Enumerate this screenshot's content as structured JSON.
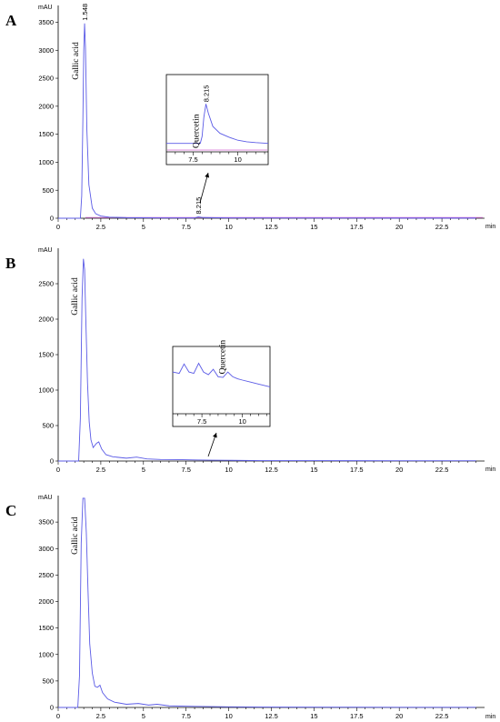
{
  "chart_data": [
    {
      "type": "line",
      "panel_label": "A",
      "y_unit": "mAU",
      "x_unit": "min",
      "xlim": [
        0,
        25
      ],
      "ylim": [
        0,
        3800
      ],
      "x_ticks": [
        0,
        2.5,
        5,
        7.5,
        10,
        12.5,
        15,
        17.5,
        20,
        22.5
      ],
      "x_tick_labels": [
        "0",
        "2.5",
        "5",
        "7.5",
        "10",
        "12.5",
        "15",
        "17.5",
        "20",
        "22.5"
      ],
      "y_ticks": [
        0,
        500,
        1000,
        1500,
        2000,
        2500,
        3000,
        3500
      ],
      "y_tick_labels": [
        "0",
        "500",
        "1000",
        "1500",
        "2000",
        "2500",
        "3000",
        "3500"
      ],
      "trace": {
        "x": [
          0,
          1.3,
          1.38,
          1.45,
          1.5,
          1.548,
          1.6,
          1.68,
          1.8,
          2.0,
          2.2,
          2.5,
          3.0,
          4.0,
          6.0,
          8.0,
          8.215,
          8.5,
          10,
          15,
          20,
          24.5
        ],
        "y": [
          0,
          0,
          400,
          1800,
          3000,
          3480,
          3050,
          1600,
          600,
          180,
          80,
          40,
          20,
          10,
          5,
          5,
          25,
          12,
          5,
          3,
          2,
          2
        ]
      },
      "peaks": [
        {
          "name": "Gallic acid",
          "rt": 1.548,
          "rt_label": "1.548"
        },
        {
          "name": "",
          "rt": 8.215,
          "rt_label": "8.215"
        }
      ],
      "inset": {
        "xlim": [
          6.0,
          11.7
        ],
        "x_ticks": [
          6.5,
          7,
          7.5,
          8,
          8.5,
          9,
          9.5,
          10,
          10.5,
          11,
          11.5
        ],
        "x_tick_labels": [
          "7.5",
          "10"
        ],
        "x_labeled_ticks": [
          7.5,
          10
        ],
        "ylim": [
          0,
          1
        ],
        "trace": {
          "x": [
            6.0,
            7.9,
            8.0,
            8.1,
            8.215,
            8.35,
            8.6,
            9.0,
            9.5,
            10.0,
            10.5,
            11.0,
            11.7
          ],
          "y": [
            0.11,
            0.11,
            0.2,
            0.45,
            0.62,
            0.5,
            0.33,
            0.24,
            0.19,
            0.15,
            0.13,
            0.12,
            0.11
          ]
        },
        "peak": {
          "name": "Quercetin",
          "rt": 8.215,
          "rt_label": "8.215"
        }
      }
    },
    {
      "type": "line",
      "panel_label": "B",
      "y_unit": "mAU",
      "x_unit": "min",
      "xlim": [
        0,
        25
      ],
      "ylim": [
        0,
        3000
      ],
      "x_ticks": [
        0,
        2.5,
        5,
        7.5,
        10,
        12.5,
        15,
        17.5,
        20,
        22.5
      ],
      "x_tick_labels": [
        "0",
        "2.5",
        "5",
        "7.5",
        "10",
        "12.5",
        "15",
        "17.5",
        "20",
        "22.5"
      ],
      "y_ticks": [
        0,
        500,
        1000,
        1500,
        2000,
        2500
      ],
      "y_tick_labels": [
        "0",
        "500",
        "1000",
        "1500",
        "2000",
        "2500"
      ],
      "trace": {
        "x": [
          0,
          1.2,
          1.3,
          1.4,
          1.48,
          1.55,
          1.62,
          1.72,
          1.82,
          1.92,
          2.05,
          2.25,
          2.38,
          2.55,
          2.8,
          3.2,
          4.0,
          4.6,
          5.2,
          6.0,
          7.0,
          8.0,
          9.0,
          10.0,
          12.0,
          16.0,
          20.0,
          24.5
        ],
        "y": [
          0,
          0,
          600,
          2300,
          2850,
          2700,
          2000,
          1100,
          550,
          300,
          190,
          250,
          270,
          170,
          90,
          60,
          40,
          55,
          30,
          22,
          20,
          15,
          12,
          10,
          6,
          5,
          4,
          4
        ]
      },
      "peaks": [
        {
          "name": "Gallic acid",
          "rt": 1.5,
          "rt_label": ""
        }
      ],
      "inset": {
        "xlim": [
          5.7,
          11.7
        ],
        "x_ticks": [
          6,
          6.5,
          7,
          7.5,
          8,
          8.5,
          9,
          9.5,
          10,
          10.5,
          11,
          11.5
        ],
        "x_tick_labels": [
          "7.5",
          "10"
        ],
        "x_labeled_ticks": [
          7.5,
          10
        ],
        "ylim": [
          0,
          1
        ],
        "trace": {
          "x": [
            5.7,
            6.1,
            6.4,
            6.7,
            7.0,
            7.3,
            7.6,
            7.9,
            8.2,
            8.5,
            8.8,
            9.1,
            9.4,
            9.7,
            10.0,
            10.5,
            11.0,
            11.7
          ],
          "y": [
            0.62,
            0.6,
            0.74,
            0.62,
            0.6,
            0.75,
            0.62,
            0.58,
            0.66,
            0.55,
            0.54,
            0.62,
            0.55,
            0.52,
            0.5,
            0.47,
            0.44,
            0.4
          ]
        },
        "peak": {
          "name": "Quercetin",
          "rt": 8.6,
          "rt_label": ""
        }
      }
    },
    {
      "type": "line",
      "panel_label": "C",
      "y_unit": "mAU",
      "x_unit": "min",
      "xlim": [
        0,
        25
      ],
      "ylim": [
        0,
        4000
      ],
      "x_ticks": [
        0,
        2.5,
        5,
        7.5,
        10,
        12.5,
        15,
        17.5,
        20,
        22.5
      ],
      "x_tick_labels": [
        "0",
        "2.5",
        "5",
        "7.5",
        "10",
        "12.5",
        "15",
        "17.5",
        "20",
        "22.5"
      ],
      "y_ticks": [
        0,
        500,
        1000,
        1500,
        2000,
        2500,
        3000,
        3500
      ],
      "y_tick_labels": [
        "0",
        "500",
        "1000",
        "1500",
        "2000",
        "2500",
        "3000",
        "3500"
      ],
      "trace": {
        "x": [
          0,
          1.15,
          1.25,
          1.35,
          1.45,
          1.55,
          1.65,
          1.75,
          1.85,
          2.0,
          2.15,
          2.3,
          2.45,
          2.6,
          2.9,
          3.3,
          4.0,
          4.7,
          5.3,
          5.8,
          6.5,
          8.0,
          10.0,
          12.0,
          16.0,
          20.0,
          24.5
        ],
        "y": [
          0,
          0,
          600,
          3100,
          3950,
          3950,
          3300,
          2200,
          1200,
          650,
          400,
          380,
          420,
          280,
          160,
          100,
          60,
          75,
          45,
          60,
          30,
          20,
          12,
          8,
          6,
          4,
          4
        ]
      },
      "peaks": [
        {
          "name": "Gallic acid",
          "rt": 1.5,
          "rt_label": ""
        }
      ]
    }
  ]
}
